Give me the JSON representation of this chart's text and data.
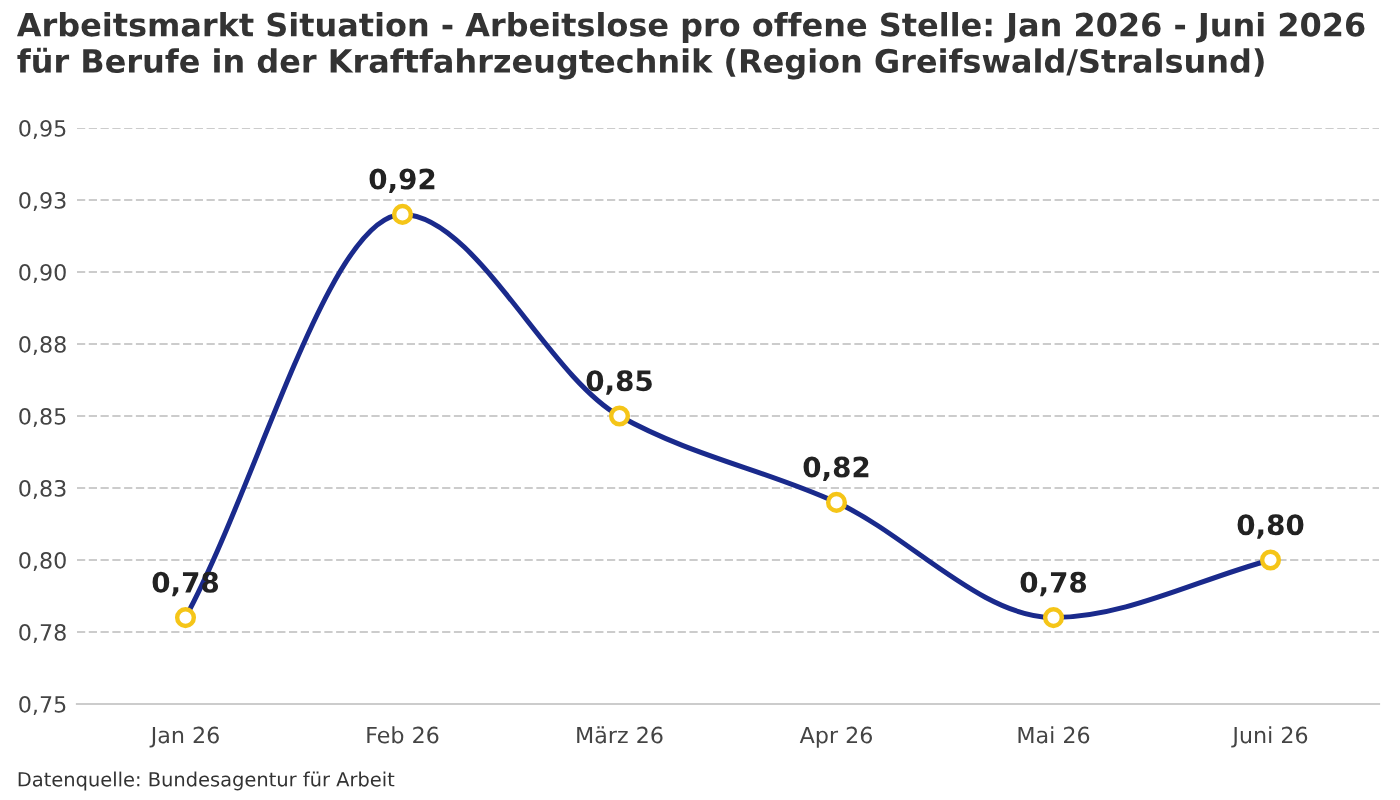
{
  "chart_data": {
    "type": "line",
    "title": "Arbeitsmarkt Situation - Arbeitslose pro offene Stelle: Jan 2026 - Juni 2026 für Berufe in der Kraftfahrzeugtechnik (Region Greifswald/Stralsund)",
    "categories": [
      "Jan 26",
      "Feb 26",
      "März 26",
      "Apr 26",
      "Mai 26",
      "Juni 26"
    ],
    "series": [
      {
        "color": "#1a2a8c",
        "values": [
          0.78,
          0.92,
          0.85,
          0.82,
          0.78,
          0.8
        ],
        "value_labels": [
          "0,78",
          "0,92",
          "0,85",
          "0,82",
          "0,78",
          "0,80"
        ]
      }
    ],
    "marker": "circle",
    "ylim": [
      0.75,
      0.95
    ],
    "yticks": [
      {
        "value": 0.75,
        "label": "0,75"
      },
      {
        "value": 0.775,
        "label": "0,78"
      },
      {
        "value": 0.8,
        "label": "0,80"
      },
      {
        "value": 0.825,
        "label": "0,83"
      },
      {
        "value": 0.85,
        "label": "0,85"
      },
      {
        "value": 0.875,
        "label": "0,88"
      },
      {
        "value": 0.9,
        "label": "0,90"
      },
      {
        "value": 0.925,
        "label": "0,93"
      },
      {
        "value": 0.95,
        "label": "0,95"
      }
    ],
    "grid": "y",
    "annotations": [
      "Datenquelle: Bundesagentur für Arbeit"
    ]
  }
}
